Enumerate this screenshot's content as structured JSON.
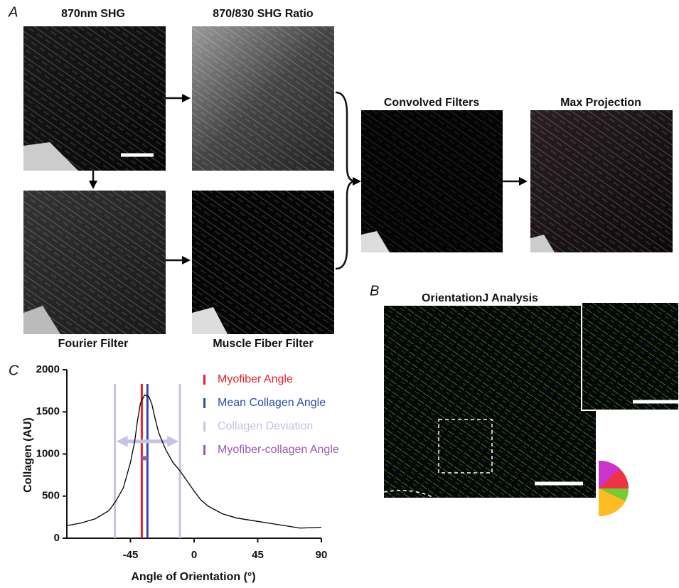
{
  "panels": {
    "a": "A",
    "b": "B",
    "c": "C"
  },
  "images": [
    "870nm SHG",
    "870/830 SHG Ratio",
    "Convolved Filters",
    "Max Projection",
    "Fourier Filter",
    "Muscle Fiber Filter",
    "OrientationJ Analysis"
  ],
  "chart_data": {
    "type": "line",
    "x_label": "Angle of Orientation (°)",
    "y_label": "Collagen (AU)",
    "x": [
      -90,
      -80,
      -70,
      -60,
      -55,
      -50,
      -45,
      -42,
      -40,
      -38,
      -35,
      -32,
      -30,
      -28,
      -25,
      -20,
      -15,
      -10,
      -5,
      0,
      5,
      10,
      20,
      30,
      45,
      60,
      75,
      90
    ],
    "values": [
      150,
      180,
      230,
      330,
      450,
      600,
      900,
      1150,
      1400,
      1600,
      1700,
      1680,
      1600,
      1450,
      1250,
      1050,
      900,
      800,
      680,
      560,
      450,
      380,
      290,
      240,
      200,
      160,
      120,
      130
    ],
    "color": "#000000",
    "xlim": [
      -90,
      90
    ],
    "xticks": [
      -45,
      0,
      45,
      90
    ],
    "ylim": [
      0,
      2000
    ],
    "yticks": [
      0,
      500,
      1000,
      1500,
      2000
    ],
    "reference_lines": [
      {
        "name": "Myofiber Angle",
        "color": "#e8202a",
        "values": [
          -37
        ]
      },
      {
        "name": "Mean Collagen Angle",
        "color": "#2b4fb5",
        "values": [
          -33
        ]
      },
      {
        "name": "Collagen Deviation",
        "color": "#c5c3e6",
        "values": [
          -56,
          -10
        ],
        "arrow_y": 1150
      },
      {
        "name": "Myofiber-collagen Angle",
        "color": "#9b59b6",
        "values": [
          -37,
          -33
        ],
        "marker_y": 950
      }
    ]
  }
}
